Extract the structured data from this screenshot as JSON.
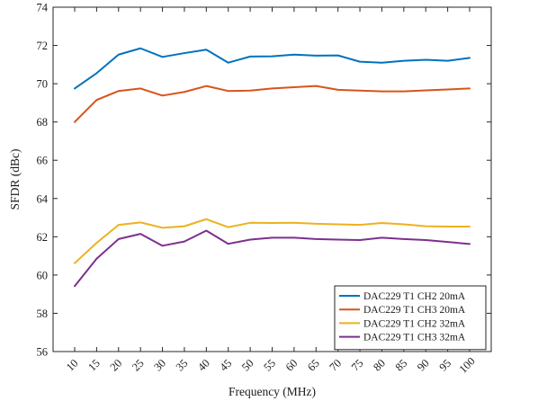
{
  "chart_data": {
    "type": "line",
    "title": "",
    "xlabel": "Frequency (MHz)",
    "ylabel": "SFDR (dBc)",
    "x": [
      10,
      15,
      20,
      25,
      30,
      35,
      40,
      45,
      50,
      55,
      60,
      65,
      70,
      75,
      80,
      85,
      90,
      95,
      100
    ],
    "x_tick_labels": [
      "10",
      "15",
      "20",
      "25",
      "30",
      "35",
      "40",
      "45",
      "50",
      "55",
      "60",
      "65",
      "70",
      "75",
      "80",
      "85",
      "90",
      "95",
      "100"
    ],
    "y_ticks": [
      56,
      58,
      60,
      62,
      64,
      66,
      68,
      70,
      72,
      74
    ],
    "y_tick_labels": [
      "56",
      "58",
      "60",
      "62",
      "64",
      "66",
      "68",
      "70",
      "72",
      "74"
    ],
    "ylim": [
      56,
      74
    ],
    "grid": false,
    "legend_position": "bottom-right",
    "series": [
      {
        "name": "DAC229 T1 CH2 20mA",
        "color": "#0072BD",
        "values": [
          69.75,
          70.55,
          71.52,
          71.85,
          71.4,
          71.6,
          71.78,
          71.1,
          71.42,
          71.43,
          71.52,
          71.47,
          71.48,
          71.15,
          71.1,
          71.2,
          71.25,
          71.2,
          71.35
        ]
      },
      {
        "name": "DAC229 T1 CH3 20mA",
        "color": "#D95319",
        "values": [
          68.0,
          69.15,
          69.62,
          69.75,
          69.38,
          69.57,
          69.88,
          69.62,
          69.64,
          69.75,
          69.82,
          69.88,
          69.68,
          69.64,
          69.6,
          69.6,
          69.65,
          69.7,
          69.75
        ]
      },
      {
        "name": "DAC229 T1 CH2 32mA",
        "color": "#EDB120",
        "values": [
          60.62,
          61.68,
          62.62,
          62.75,
          62.47,
          62.55,
          62.92,
          62.5,
          62.73,
          62.72,
          62.73,
          62.68,
          62.65,
          62.62,
          62.72,
          62.65,
          62.55,
          62.53,
          62.53
        ]
      },
      {
        "name": "DAC229 T1 CH3 32mA",
        "color": "#7E2F8E",
        "values": [
          59.42,
          60.85,
          61.88,
          62.15,
          61.53,
          61.75,
          62.32,
          61.63,
          61.85,
          61.95,
          61.95,
          61.88,
          61.85,
          61.83,
          61.95,
          61.88,
          61.83,
          61.73,
          61.62
        ]
      }
    ]
  }
}
